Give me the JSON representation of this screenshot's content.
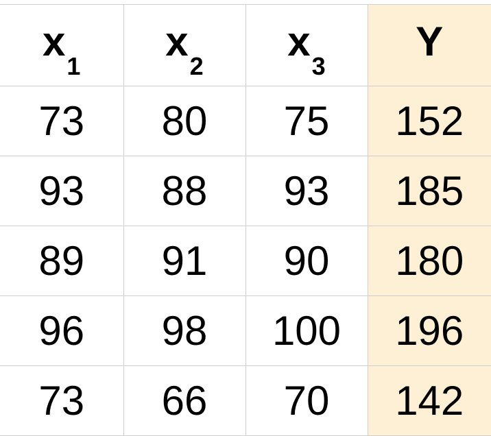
{
  "table": {
    "headers": [
      {
        "base": "x",
        "sub": "1"
      },
      {
        "base": "x",
        "sub": "2"
      },
      {
        "base": "x",
        "sub": "3"
      },
      {
        "base": "Y",
        "sub": ""
      }
    ],
    "rows": [
      [
        "73",
        "80",
        "75",
        "152"
      ],
      [
        "93",
        "88",
        "93",
        "185"
      ],
      [
        "89",
        "91",
        "90",
        "180"
      ],
      [
        "96",
        "98",
        "100",
        "196"
      ],
      [
        "73",
        "66",
        "70",
        "142"
      ]
    ]
  },
  "colors": {
    "highlight_column": "#fdf0d5",
    "grid": "#cfcfcf",
    "text": "#000000"
  }
}
